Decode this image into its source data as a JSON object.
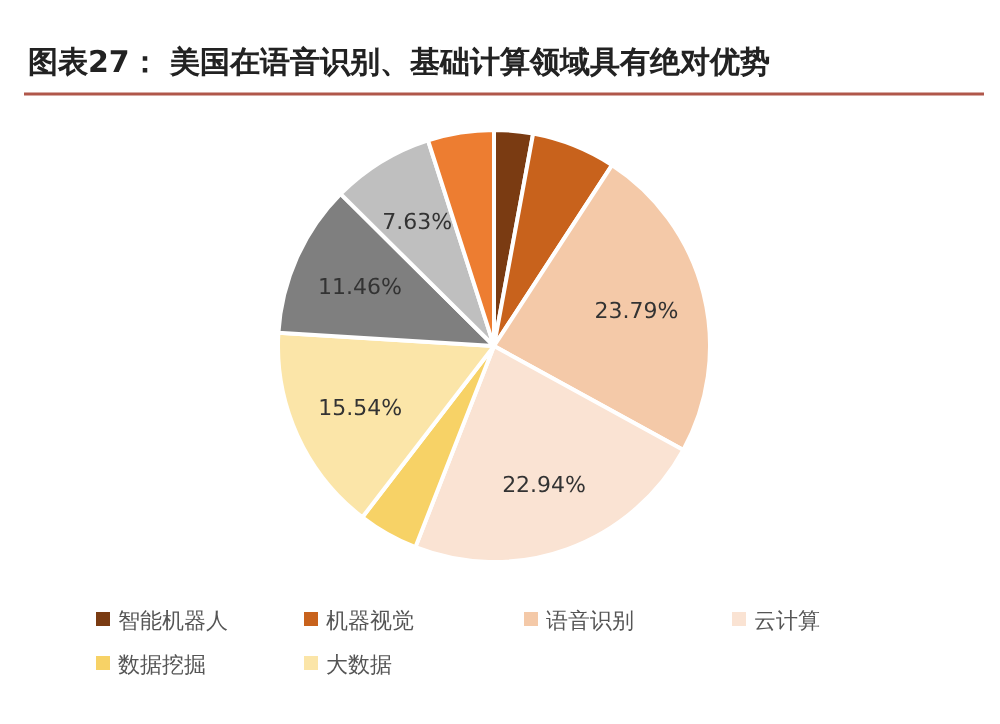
{
  "chart_data": {
    "type": "pie",
    "title": "图表27：  美国在语音识别、基础计算领域具有绝对优势",
    "categories": [
      "智能机器人",
      "机器视觉",
      "语音识别",
      "云计算",
      "数据挖掘",
      "大数据",
      null,
      null,
      null
    ],
    "values": [
      2.9,
      6.3,
      23.79,
      22.94,
      4.5,
      15.54,
      11.46,
      7.63,
      4.94
    ],
    "colors": [
      "#7a3b12",
      "#c8621c",
      "#f4c9a8",
      "#fae3d3",
      "#f7d266",
      "#fbe5a8",
      "#7f7f7f",
      "#bfbfbf",
      "#ed7d31"
    ],
    "value_labels": [
      null,
      null,
      "23.79%",
      "22.94%",
      null,
      "15.54%",
      "11.46%",
      "7.63%",
      null
    ],
    "legend": "bottom"
  }
}
